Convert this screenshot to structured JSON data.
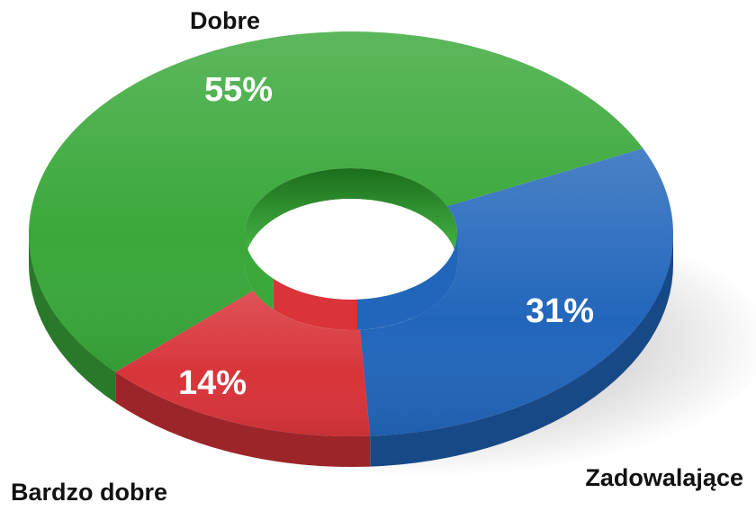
{
  "chart_data": {
    "type": "pie",
    "style": "3d-donut",
    "slices": [
      {
        "label": "Dobre",
        "value": 55,
        "value_label": "55%",
        "color": "#3aa83a"
      },
      {
        "label": "Zadowalające",
        "value": 31,
        "value_label": "31%",
        "color": "#2266bb"
      },
      {
        "label": "Bardzo dobre",
        "value": 14,
        "value_label": "14%",
        "color": "#d8343a"
      }
    ],
    "title": "",
    "legend": "none"
  }
}
